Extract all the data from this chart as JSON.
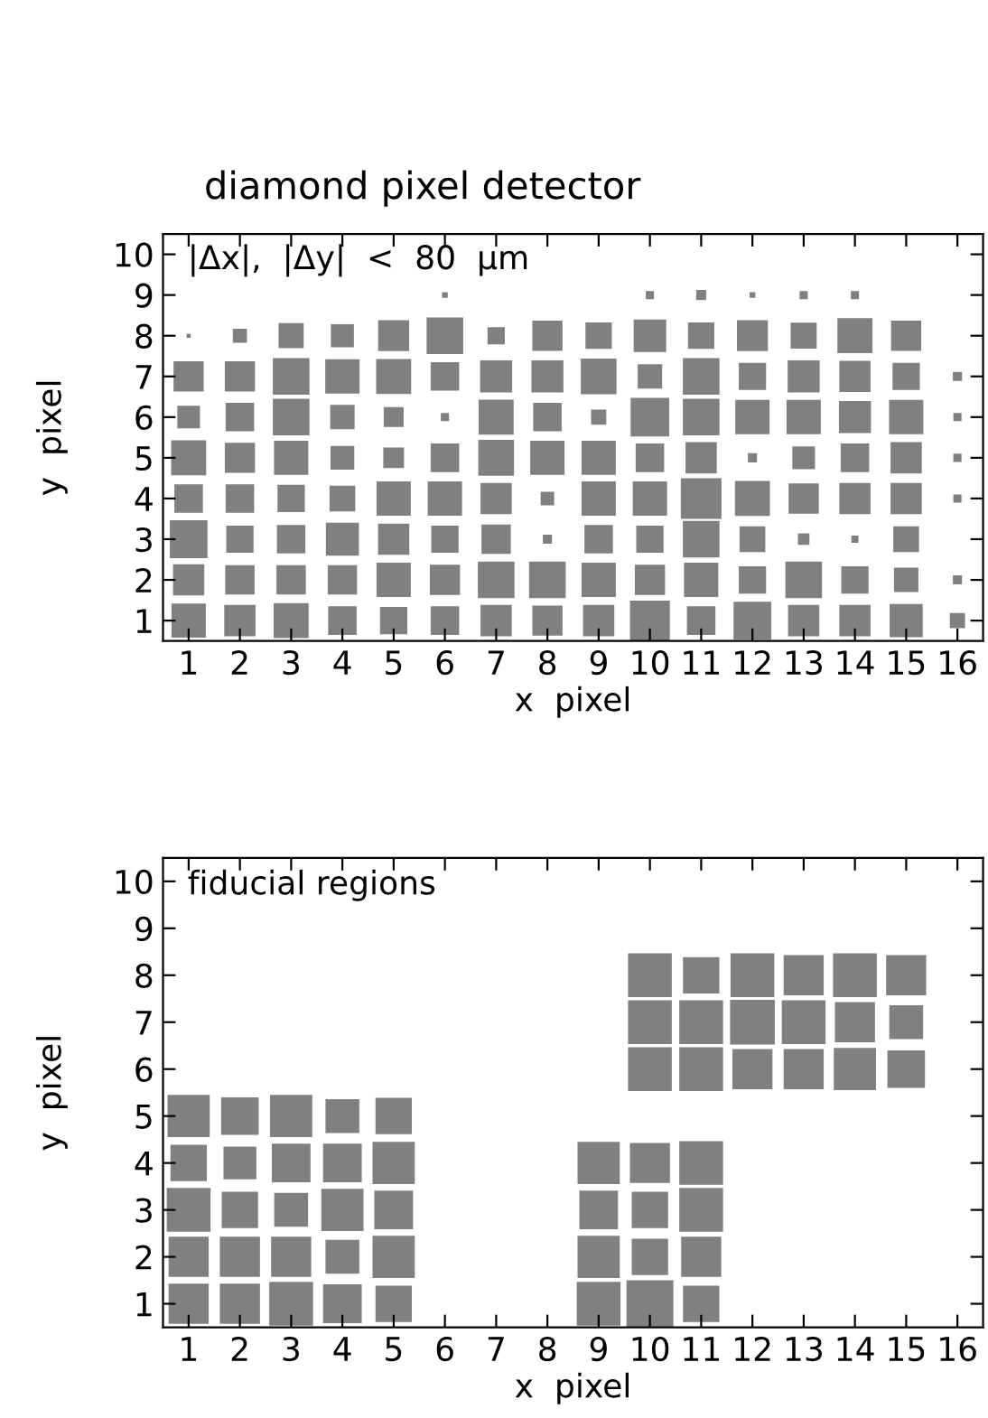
{
  "chart_data": [
    {
      "type": "bubble",
      "title": "diamond pixel detector",
      "xlabel": "x  pixel",
      "ylabel": "y  pixel",
      "annotations": [
        "|Δx|,  |Δy|  <  80  μm"
      ],
      "xlim": [
        0.5,
        16.5
      ],
      "xticks": [
        1,
        2,
        3,
        4,
        5,
        6,
        7,
        8,
        9,
        10,
        11,
        12,
        13,
        14,
        15,
        16
      ],
      "ylim": [
        0.5,
        10.5
      ],
      "yticks": [
        1,
        2,
        3,
        4,
        5,
        6,
        7,
        8,
        9,
        10
      ],
      "marker": "square",
      "grid": false,
      "legend": false,
      "series": [
        {
          "color": "#808080",
          "x": [
            1,
            2,
            3,
            4,
            5,
            6,
            7,
            8,
            9,
            10,
            11,
            12,
            13,
            14,
            15,
            16,
            1,
            2,
            3,
            4,
            5,
            6,
            7,
            8,
            9,
            10,
            11,
            12,
            13,
            14,
            15,
            16,
            1,
            2,
            3,
            4,
            5,
            6,
            7,
            8,
            9,
            10,
            11,
            12,
            13,
            14,
            15,
            1,
            2,
            3,
            4,
            5,
            6,
            7,
            8,
            9,
            10,
            11,
            12,
            13,
            14,
            15,
            16,
            1,
            2,
            3,
            4,
            5,
            6,
            7,
            8,
            9,
            10,
            11,
            12,
            13,
            14,
            15,
            16,
            1,
            2,
            3,
            4,
            5,
            6,
            7,
            8,
            9,
            10,
            11,
            12,
            13,
            14,
            15,
            16,
            1,
            2,
            3,
            4,
            5,
            6,
            7,
            8,
            9,
            10,
            11,
            12,
            13,
            14,
            15,
            16,
            1,
            2,
            3,
            4,
            5,
            6,
            7,
            8,
            9,
            10,
            11,
            12,
            13,
            14,
            15,
            6,
            10,
            11,
            12,
            13,
            14
          ],
          "values": [
            1,
            1,
            1,
            1,
            1,
            1,
            1,
            1,
            1,
            1,
            1,
            1,
            1,
            1,
            1,
            1,
            2,
            2,
            2,
            2,
            2,
            2,
            2,
            2,
            2,
            2,
            2,
            2,
            2,
            2,
            2,
            2,
            3,
            3,
            3,
            3,
            3,
            3,
            3,
            3,
            3,
            3,
            3,
            3,
            3,
            3,
            3,
            4,
            4,
            4,
            4,
            4,
            4,
            4,
            4,
            4,
            4,
            4,
            4,
            4,
            4,
            4,
            4,
            5,
            5,
            5,
            5,
            5,
            5,
            5,
            5,
            5,
            5,
            5,
            5,
            5,
            5,
            5,
            5,
            6,
            6,
            6,
            6,
            6,
            6,
            6,
            6,
            6,
            6,
            6,
            6,
            6,
            6,
            6,
            6,
            7,
            7,
            7,
            7,
            7,
            7,
            7,
            7,
            7,
            7,
            7,
            7,
            7,
            7,
            7,
            7,
            8,
            8,
            8,
            8,
            8,
            8,
            8,
            8,
            8,
            8,
            8,
            8,
            8,
            8,
            8,
            9,
            9,
            9,
            9,
            9,
            9
          ],
          "sizes": [
            0.71,
            0.59,
            0.74,
            0.49,
            0.45,
            0.49,
            0.59,
            0.55,
            0.59,
            0.96,
            0.49,
            0.86,
            0.59,
            0.59,
            0.66,
            0.14,
            0.59,
            0.52,
            0.52,
            0.52,
            0.71,
            0.55,
            0.81,
            0.81,
            0.71,
            0.55,
            0.71,
            0.45,
            0.81,
            0.45,
            0.36,
            0.05,
            0.86,
            0.45,
            0.49,
            0.66,
            0.59,
            0.45,
            0.52,
            0.05,
            0.49,
            0.45,
            0.81,
            0.4,
            0.08,
            0.03,
            0.4,
            0.49,
            0.49,
            0.45,
            0.4,
            0.71,
            0.71,
            0.59,
            0.11,
            0.71,
            0.71,
            1,
            0.74,
            0.55,
            0.59,
            0.59,
            0.04,
            0.74,
            0.55,
            0.71,
            0.34,
            0.26,
            0.49,
            0.77,
            0.71,
            0.71,
            0.49,
            0.59,
            0.05,
            0.31,
            0.49,
            0.59,
            0.04,
            0.31,
            0.49,
            0.81,
            0.36,
            0.24,
            0.04,
            0.74,
            0.49,
            0.14,
            0.9,
            0.81,
            0.71,
            0.71,
            0.62,
            0.71,
            0.04,
            0.55,
            0.55,
            0.81,
            0.71,
            0.74,
            0.49,
            0.62,
            0.62,
            0.77,
            0.36,
            0.81,
            0.45,
            0.62,
            0.59,
            0.45,
            0.05,
            0.01,
            0.12,
            0.38,
            0.32,
            0.58,
            0.81,
            0.18,
            0.55,
            0.42,
            0.64,
            0.42,
            0.58,
            0.41,
            0.74,
            0.55,
            0.02,
            0.04,
            0.06,
            0.02,
            0.04,
            0.04
          ]
        }
      ]
    },
    {
      "type": "bubble",
      "xlabel": "x  pixel",
      "ylabel": "y  pixel",
      "annotations": [
        "fiducial regions"
      ],
      "xlim": [
        0.5,
        16.5
      ],
      "xticks": [
        1,
        2,
        3,
        4,
        5,
        6,
        7,
        8,
        9,
        10,
        11,
        12,
        13,
        14,
        15,
        16
      ],
      "ylim": [
        0.5,
        10.5
      ],
      "yticks": [
        1,
        2,
        3,
        4,
        5,
        6,
        7,
        8,
        9,
        10
      ],
      "marker": "square",
      "grid": false,
      "legend": false,
      "series": [
        {
          "color": "#808080",
          "x": [
            10,
            11,
            12,
            13,
            14,
            15,
            10,
            11,
            12,
            13,
            14,
            15,
            10,
            11,
            12,
            13,
            14,
            15,
            1,
            2,
            3,
            4,
            5,
            1,
            2,
            3,
            4,
            5,
            9,
            10,
            11,
            1,
            2,
            3,
            4,
            5,
            9,
            10,
            11,
            1,
            2,
            3,
            4,
            5,
            9,
            10,
            11,
            1,
            2,
            3,
            4,
            5,
            9,
            10,
            11
          ],
          "values": [
            8,
            8,
            8,
            8,
            8,
            8,
            7,
            7,
            7,
            7,
            7,
            7,
            6,
            6,
            6,
            6,
            6,
            6,
            5,
            5,
            5,
            5,
            5,
            4,
            4,
            4,
            4,
            4,
            4,
            4,
            4,
            3,
            3,
            3,
            3,
            3,
            3,
            3,
            3,
            2,
            2,
            2,
            2,
            2,
            2,
            2,
            2,
            1,
            1,
            1,
            1,
            1,
            1,
            1,
            1
          ],
          "sizes": [
            0.87,
            0.6,
            0.87,
            0.73,
            0.87,
            0.73,
            0.87,
            0.87,
            0.91,
            0.87,
            0.73,
            0.52,
            0.87,
            0.87,
            0.73,
            0.73,
            0.81,
            0.64,
            0.81,
            0.64,
            0.81,
            0.52,
            0.6,
            0.6,
            0.49,
            0.68,
            0.68,
            0.81,
            0.81,
            0.73,
            0.87,
            0.87,
            0.6,
            0.52,
            0.81,
            0.68,
            0.68,
            0.6,
            0.87,
            0.73,
            0.73,
            0.73,
            0.52,
            0.81,
            0.81,
            0.6,
            0.73,
            0.73,
            0.73,
            0.87,
            0.68,
            0.6,
            0.87,
            1,
            0.6
          ]
        }
      ]
    }
  ]
}
